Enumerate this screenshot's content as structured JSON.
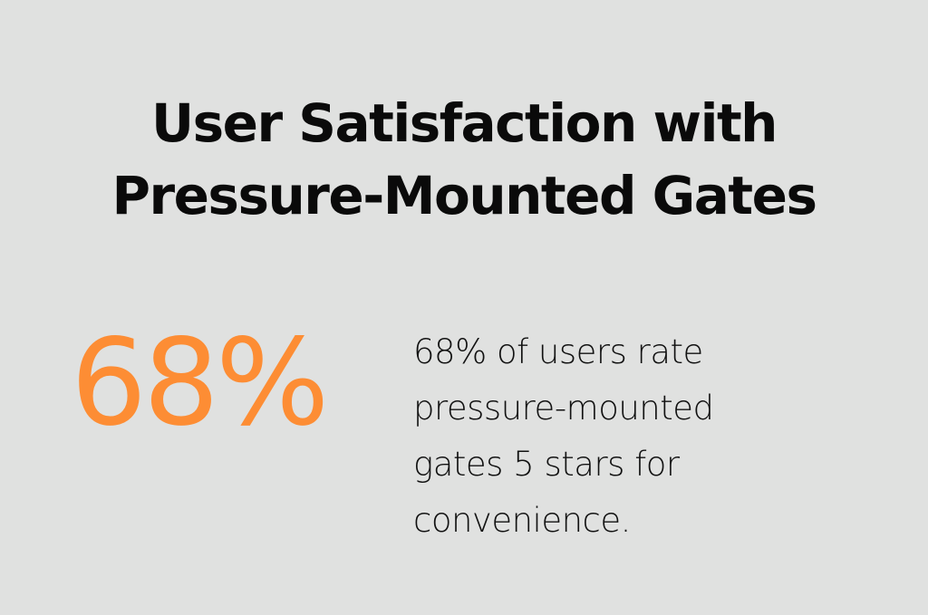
{
  "title": {
    "line1": "User Satisfaction with",
    "line2": "Pressure-Mounted Gates"
  },
  "stat": {
    "value": "68%",
    "color": "#fd8d34"
  },
  "description": {
    "line1": "68% of users rate",
    "line2": "pressure-mounted",
    "line3": "gates 5 stars for",
    "line4": "convenience."
  },
  "chart_data": {
    "type": "table",
    "title": "User Satisfaction with Pressure-Mounted Gates",
    "categories": [
      "Users rating 5 stars for convenience"
    ],
    "values": [
      68
    ],
    "unit": "%",
    "annotation": "68% of users rate pressure-mounted gates 5 stars for convenience."
  }
}
